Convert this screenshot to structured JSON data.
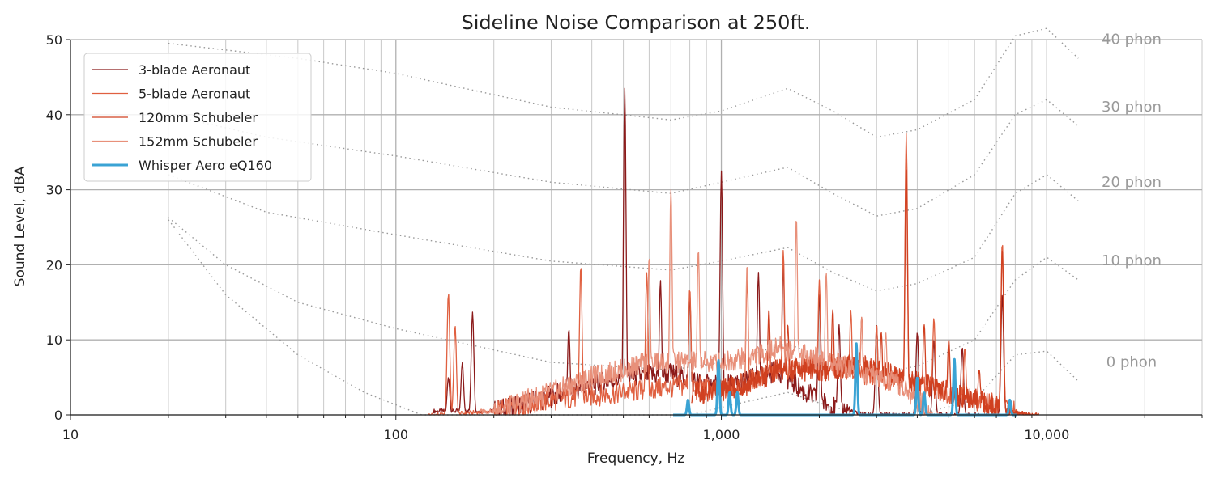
{
  "chart_data": {
    "type": "line",
    "title": "Sideline Noise Comparison at 250ft.",
    "xlabel": "Frequency, Hz",
    "ylabel": "Sound Level, dBA",
    "xscale": "log",
    "xlim": [
      10,
      30000
    ],
    "ylim": [
      0,
      50
    ],
    "grid": true,
    "legend_position": "top-left",
    "x_ticks": [
      {
        "value": 10,
        "label": "10"
      },
      {
        "value": 100,
        "label": "100"
      },
      {
        "value": 1000,
        "label": "1,000"
      },
      {
        "value": 10000,
        "label": "10,000"
      }
    ],
    "y_ticks": [
      {
        "value": 0,
        "label": "0"
      },
      {
        "value": 10,
        "label": "10"
      },
      {
        "value": 20,
        "label": "20"
      },
      {
        "value": 30,
        "label": "30"
      },
      {
        "value": 40,
        "label": "40"
      },
      {
        "value": 50,
        "label": "50"
      }
    ],
    "series": [
      {
        "name": "3-blade Aeronaut",
        "color": "#8b1a1a",
        "width": 1.3,
        "base": [
          [
            200,
            0.5
          ],
          [
            250,
            1.5
          ],
          [
            300,
            2.5
          ],
          [
            400,
            4
          ],
          [
            500,
            5
          ],
          [
            700,
            5.5
          ],
          [
            900,
            4
          ],
          [
            1100,
            4
          ],
          [
            1300,
            5
          ],
          [
            1500,
            6
          ],
          [
            1800,
            3
          ],
          [
            2200,
            1
          ],
          [
            2800,
            0
          ],
          [
            3500,
            0
          ]
        ],
        "peaks": [
          [
            145,
            5
          ],
          [
            160,
            7
          ],
          [
            172,
            13.7
          ],
          [
            340,
            11.5
          ],
          [
            505,
            43.5
          ],
          [
            650,
            18
          ],
          [
            800,
            16
          ],
          [
            1000,
            32.5
          ],
          [
            1300,
            19
          ],
          [
            1550,
            20
          ],
          [
            2000,
            16
          ],
          [
            2300,
            12
          ],
          [
            3000,
            12
          ],
          [
            4000,
            11
          ],
          [
            4500,
            10
          ],
          [
            5500,
            9
          ],
          [
            7300,
            16
          ]
        ]
      },
      {
        "name": "5-blade Aeronaut",
        "color": "#e06040",
        "width": 1.3,
        "base": [
          [
            140,
            0
          ],
          [
            200,
            0.5
          ],
          [
            300,
            2
          ],
          [
            500,
            3
          ],
          [
            800,
            4
          ],
          [
            1000,
            3
          ],
          [
            1500,
            6
          ],
          [
            2000,
            7
          ],
          [
            2500,
            6
          ],
          [
            3000,
            5
          ],
          [
            4000,
            4
          ],
          [
            5000,
            3
          ],
          [
            6000,
            2
          ],
          [
            7500,
            1
          ],
          [
            8500,
            0
          ]
        ],
        "peaks": [
          [
            145,
            16.3
          ],
          [
            152,
            12
          ],
          [
            370,
            20
          ],
          [
            590,
            19
          ],
          [
            800,
            17
          ],
          [
            1200,
            18
          ],
          [
            1550,
            22
          ],
          [
            2000,
            18
          ],
          [
            2500,
            14
          ],
          [
            3000,
            12
          ],
          [
            3700,
            37.5
          ],
          [
            4500,
            13
          ],
          [
            5600,
            9
          ],
          [
            7300,
            23.2
          ]
        ]
      },
      {
        "name": "120mm Schubeler",
        "color": "#d04020",
        "width": 1.3,
        "base": [
          [
            900,
            3
          ],
          [
            1200,
            4
          ],
          [
            1500,
            6
          ],
          [
            1800,
            6
          ],
          [
            2200,
            6
          ],
          [
            2600,
            7
          ],
          [
            3000,
            6
          ],
          [
            3600,
            5
          ],
          [
            4200,
            4
          ],
          [
            5000,
            3
          ],
          [
            6000,
            2
          ],
          [
            7000,
            1
          ],
          [
            8000,
            0.3
          ],
          [
            9000,
            0
          ]
        ],
        "peaks": [
          [
            1400,
            14
          ],
          [
            1600,
            12
          ],
          [
            2200,
            14
          ],
          [
            2700,
            13
          ],
          [
            3100,
            11
          ],
          [
            3700,
            33
          ],
          [
            4200,
            12
          ],
          [
            5000,
            10
          ],
          [
            6200,
            6
          ],
          [
            7300,
            22
          ]
        ]
      },
      {
        "name": "152mm Schubeler",
        "color": "#e8907a",
        "width": 1.3,
        "base": [
          [
            200,
            0.5
          ],
          [
            300,
            3
          ],
          [
            400,
            5
          ],
          [
            500,
            6
          ],
          [
            600,
            7
          ],
          [
            800,
            7
          ],
          [
            1000,
            7
          ],
          [
            1300,
            8
          ],
          [
            1500,
            9
          ],
          [
            1800,
            8
          ],
          [
            2200,
            7
          ],
          [
            2600,
            6
          ],
          [
            3000,
            5
          ],
          [
            3500,
            4
          ],
          [
            4000,
            2
          ],
          [
            4500,
            0
          ]
        ],
        "peaks": [
          [
            600,
            21
          ],
          [
            700,
            30
          ],
          [
            850,
            22
          ],
          [
            1200,
            20
          ],
          [
            1700,
            26.2
          ],
          [
            2100,
            19
          ],
          [
            2700,
            13
          ],
          [
            3200,
            11
          ]
        ]
      },
      {
        "name": "Whisper Aero eQ160",
        "color": "#3aa3d4",
        "width": 3,
        "base": [],
        "peaks": [
          [
            790,
            2
          ],
          [
            980,
            7.3
          ],
          [
            1060,
            3
          ],
          [
            1120,
            3
          ],
          [
            2600,
            9.5
          ],
          [
            4000,
            5
          ],
          [
            4200,
            3
          ],
          [
            5200,
            7.5
          ],
          [
            7700,
            2
          ]
        ]
      }
    ],
    "phon_curves": [
      {
        "label": "40 phon",
        "points": [
          [
            20,
            49.5
          ],
          [
            50,
            47.5
          ],
          [
            100,
            45.5
          ],
          [
            300,
            41
          ],
          [
            700,
            39.3
          ],
          [
            1000,
            40.5
          ],
          [
            1600,
            43.5
          ],
          [
            2200,
            40.5
          ],
          [
            3000,
            37
          ],
          [
            4000,
            38
          ],
          [
            6000,
            42
          ],
          [
            8000,
            50.5
          ],
          [
            10000,
            51.5
          ],
          [
            12500,
            47.5
          ]
        ]
      },
      {
        "label": "30 phon",
        "points": [
          [
            20,
            40
          ],
          [
            40,
            37
          ],
          [
            100,
            34.5
          ],
          [
            300,
            31
          ],
          [
            700,
            29.5
          ],
          [
            1000,
            31
          ],
          [
            1600,
            33
          ],
          [
            2200,
            29.5
          ],
          [
            3000,
            26.5
          ],
          [
            4000,
            27.5
          ],
          [
            6000,
            32
          ],
          [
            8000,
            40
          ],
          [
            10000,
            42
          ],
          [
            12500,
            38.5
          ]
        ]
      },
      {
        "label": "20 phon",
        "points": [
          [
            20,
            32
          ],
          [
            40,
            27
          ],
          [
            100,
            24
          ],
          [
            300,
            20.5
          ],
          [
            700,
            19.3
          ],
          [
            1000,
            20.5
          ],
          [
            1600,
            22.3
          ],
          [
            2200,
            19
          ],
          [
            3000,
            16.5
          ],
          [
            4000,
            17.5
          ],
          [
            6000,
            21
          ],
          [
            8000,
            29.5
          ],
          [
            10000,
            32
          ],
          [
            12500,
            28.5
          ]
        ]
      },
      {
        "label": "10 phon",
        "points": [
          [
            20,
            26.3
          ],
          [
            30,
            20
          ],
          [
            50,
            15
          ],
          [
            100,
            11.5
          ],
          [
            300,
            7
          ],
          [
            700,
            6
          ],
          [
            1000,
            7
          ],
          [
            1600,
            9.5
          ],
          [
            2200,
            7
          ],
          [
            3000,
            5.5
          ],
          [
            4000,
            6.5
          ],
          [
            6000,
            10
          ],
          [
            8000,
            18
          ],
          [
            10000,
            21
          ],
          [
            12500,
            18
          ]
        ]
      },
      {
        "label": "0 phon",
        "points": [
          [
            20,
            26
          ],
          [
            30,
            16
          ],
          [
            50,
            8
          ],
          [
            80,
            3
          ],
          [
            120,
            0
          ],
          [
            800,
            0
          ],
          [
            1000,
            1
          ],
          [
            1600,
            3
          ],
          [
            2200,
            1
          ],
          [
            3000,
            0
          ],
          [
            4000,
            0
          ],
          [
            6000,
            2
          ],
          [
            8000,
            8
          ],
          [
            10000,
            8.5
          ],
          [
            12500,
            4.5
          ]
        ]
      }
    ]
  }
}
